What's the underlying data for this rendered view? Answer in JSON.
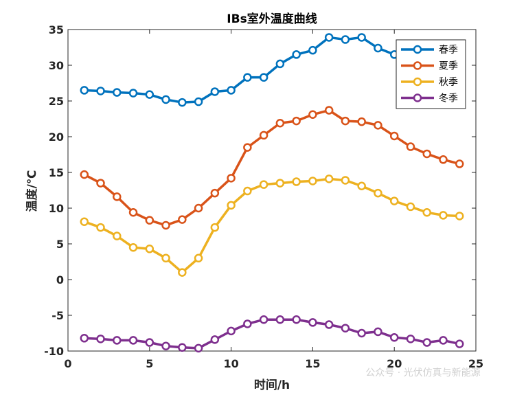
{
  "chart_data": {
    "type": "line",
    "title": "IBs室外温度曲线",
    "xlabel": "时间/h",
    "ylabel": "温度/℃",
    "xlim": [
      0,
      25
    ],
    "ylim": [
      -10,
      35
    ],
    "xticks": [
      0,
      5,
      10,
      15,
      20,
      25
    ],
    "yticks": [
      -10,
      -5,
      0,
      5,
      10,
      15,
      20,
      25,
      30,
      35
    ],
    "grid": false,
    "legend_position": "top-right",
    "marker": "circle",
    "x": [
      1,
      2,
      3,
      4,
      5,
      6,
      7,
      8,
      9,
      10,
      11,
      12,
      13,
      14,
      15,
      16,
      17,
      18,
      19,
      20,
      21,
      22,
      23,
      24
    ],
    "series": [
      {
        "name": "春季",
        "color": "#0072BD",
        "values": [
          26.5,
          26.4,
          26.2,
          26.1,
          25.9,
          25.2,
          24.8,
          24.9,
          26.3,
          26.5,
          28.3,
          28.3,
          30.2,
          31.5,
          32.1,
          33.9,
          33.6,
          33.9,
          32.4,
          31.5,
          31.2,
          30.8,
          30.4,
          30.1
        ]
      },
      {
        "name": "夏季",
        "color": "#D95319",
        "values": [
          14.7,
          13.5,
          11.6,
          9.4,
          8.3,
          7.6,
          8.4,
          10.0,
          12.1,
          14.2,
          18.5,
          20.2,
          21.9,
          22.2,
          23.1,
          23.7,
          22.2,
          22.1,
          21.6,
          20.1,
          18.6,
          17.6,
          16.8,
          16.2
        ]
      },
      {
        "name": "秋季",
        "color": "#EDB120",
        "values": [
          8.1,
          7.3,
          6.1,
          4.5,
          4.3,
          3.0,
          1.0,
          3.0,
          7.3,
          10.4,
          12.4,
          13.3,
          13.5,
          13.7,
          13.8,
          14.1,
          13.9,
          13.1,
          12.1,
          11.0,
          10.2,
          9.4,
          9.0,
          8.9
        ]
      },
      {
        "name": "冬季",
        "color": "#7E2F8E",
        "values": [
          -8.2,
          -8.3,
          -8.5,
          -8.5,
          -8.8,
          -9.3,
          -9.5,
          -9.6,
          -8.4,
          -7.2,
          -6.2,
          -5.6,
          -5.6,
          -5.6,
          -6.0,
          -6.3,
          -6.8,
          -7.5,
          -7.3,
          -8.1,
          -8.3,
          -8.8,
          -8.5,
          -9.0
        ]
      }
    ]
  },
  "watermark": "公众号 · 光伏仿真与新能源"
}
